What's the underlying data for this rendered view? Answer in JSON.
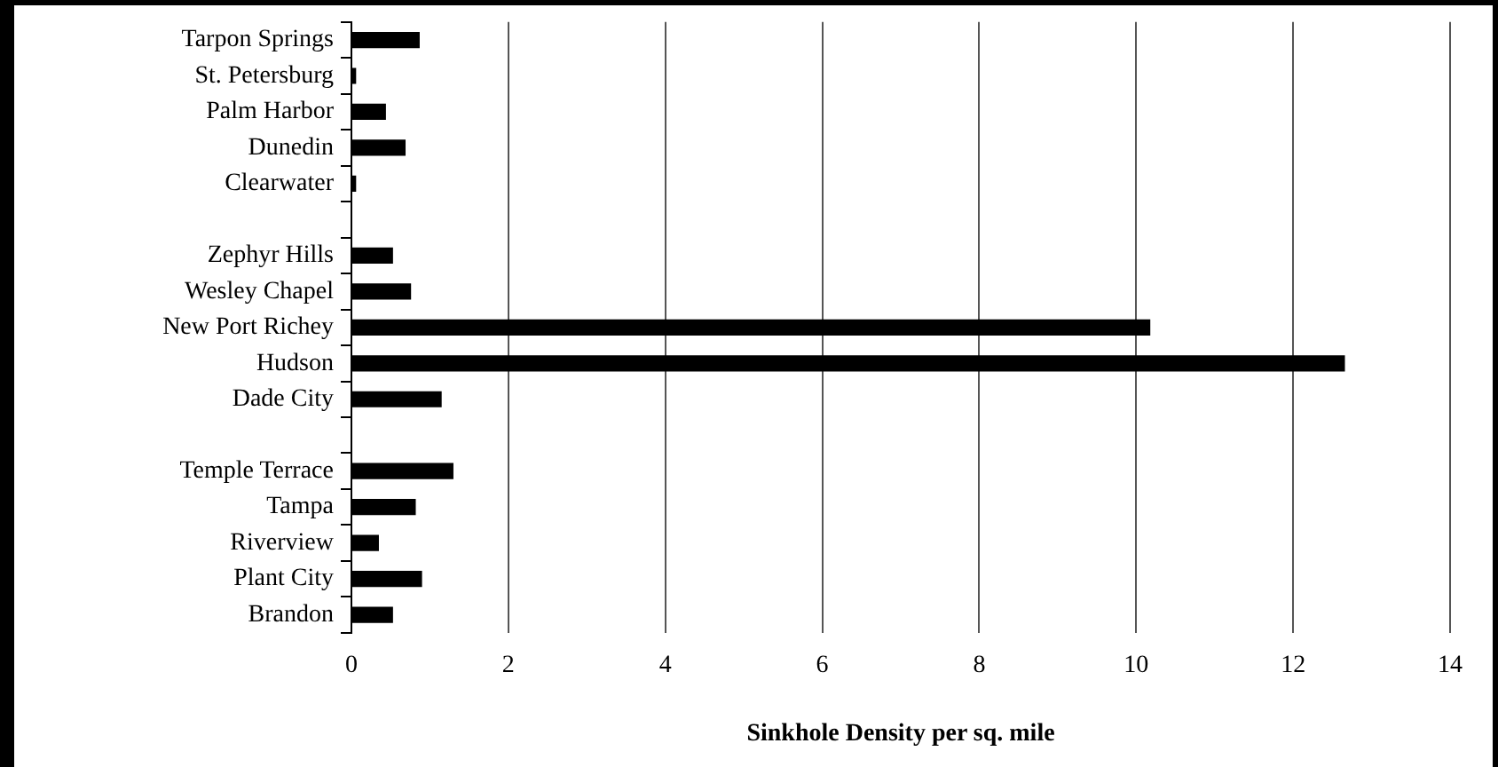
{
  "chart_data": {
    "type": "bar",
    "orientation": "horizontal",
    "xlabel": "Sinkhole Density per sq. mile",
    "categories": [
      "Tarpon Springs",
      "St. Petersburg",
      "Palm Harbor",
      "Dunedin",
      "Clearwater",
      null,
      "Zephyr Hills",
      "Wesley Chapel",
      "New Port Richey",
      "Hudson",
      "Dade City",
      null,
      "Temple Terrace",
      "Tampa",
      "Riverview",
      "Plant City",
      "Brandon"
    ],
    "values": [
      0.87,
      0.06,
      0.44,
      0.69,
      0.06,
      null,
      0.53,
      0.76,
      10.18,
      12.66,
      1.15,
      null,
      1.3,
      0.82,
      0.35,
      0.9,
      0.53
    ],
    "color": "#000000",
    "xlim": [
      0,
      14
    ],
    "xticks": [
      0,
      2,
      4,
      6,
      8,
      10,
      12,
      14
    ],
    "grid": "x",
    "legend": false
  }
}
